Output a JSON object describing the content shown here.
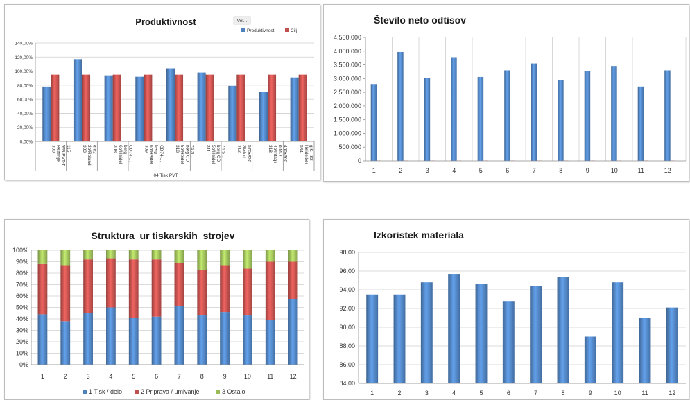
{
  "charts": {
    "prod": {
      "title": "Produktivnost",
      "badge": "Vel...",
      "axis_group_label": "04 Tisk PVT",
      "chart_data": {
        "type": "bar",
        "title": "Produktivnost",
        "categories": [
          [
            "300",
            "Rezanje",
            "WB PVT-T",
            "115"
          ],
          [
            "303",
            "2b/Roland",
            "d 82"
          ],
          [
            "308",
            "6b/Heidel",
            "berg",
            "CD74-..."
          ],
          [
            "309",
            "6b/Heidel",
            "berg",
            "CD74-..."
          ],
          [
            "318",
            "5b/Heidel",
            "berg CD",
            "74 S..."
          ],
          [
            "311",
            "5b/Heidel",
            "berg CD",
            "74 S..."
          ],
          [
            "312",
            "Stafod",
            "570x820"
          ],
          [
            "318",
            "4b/Intagli",
            "o MO",
            "460x360"
          ],
          [
            "534",
            "Heidelber",
            "g KT 82"
          ]
        ],
        "series": [
          {
            "name": "Produktivnost",
            "color": "#4f81bd",
            "values": [
              78,
              117,
              94,
              92,
              104,
              98,
              79,
              71,
              91
            ]
          },
          {
            "name": "Cilj",
            "color": "#c0504d",
            "values": [
              95,
              95,
              95,
              95,
              95,
              95,
              95,
              95,
              95
            ]
          }
        ],
        "ylim": [
          0,
          140
        ],
        "yticks": [
          "0,00%",
          "20,00%",
          "40,00%",
          "60,00%",
          "80,00%",
          "100,00%",
          "120,00%",
          "140,00%"
        ],
        "legend": "top-right"
      }
    },
    "odtisi": {
      "title": "Število neto odtisov",
      "chart_data": {
        "type": "bar",
        "title": "Število neto odtisov",
        "categories": [
          "1",
          "2",
          "3",
          "4",
          "5",
          "6",
          "7",
          "8",
          "9",
          "10",
          "11",
          "12"
        ],
        "series": [
          {
            "color": "#4f81bd",
            "values": [
              2800000,
              3970000,
              3010000,
              3780000,
              3060000,
              3300000,
              3550000,
              2940000,
              3270000,
              3460000,
              2710000,
              3300000
            ]
          },
          {
            "color": "#c0504d",
            "values": [
              12000,
              12000,
              12000,
              12000,
              12000,
              12000,
              12000,
              12000,
              12000,
              12000,
              12000,
              12000
            ]
          }
        ],
        "ylim": [
          0,
          4500000
        ],
        "yticks": [
          "0",
          "500.000",
          "1.000.000",
          "1.500.000",
          "2.000.000",
          "2.500.000",
          "3.000.000",
          "3.500.000",
          "4.000.000",
          "4.500.000"
        ],
        "grid": "vertical"
      }
    },
    "struktura": {
      "title": "Struktura  ur tiskarskih  strojev",
      "chart_data": {
        "type": "bar",
        "stacked": "percent",
        "title": "Struktura ur tiskarskih strojev",
        "categories": [
          "1",
          "2",
          "3",
          "4",
          "5",
          "6",
          "7",
          "8",
          "9",
          "10",
          "11",
          "12"
        ],
        "series": [
          {
            "name": "1 Tisk / delo",
            "color": "#4f81bd",
            "values": [
              44,
              38,
              45,
              50,
              41,
              42,
              51,
              43,
              46,
              43,
              39,
              57
            ]
          },
          {
            "name": "2 Priprava / umivanje",
            "color": "#c0504d",
            "values": [
              44,
              49,
              47,
              43,
              51,
              50,
              38,
              40,
              41,
              41,
              51,
              33
            ]
          },
          {
            "name": "3 Ostalo",
            "color": "#9bbb59",
            "values": [
              12,
              13,
              8,
              7,
              8,
              8,
              11,
              17,
              13,
              16,
              10,
              10
            ]
          }
        ],
        "ylim": [
          0,
          100
        ],
        "yticks": [
          "0%",
          "10%",
          "20%",
          "30%",
          "40%",
          "50%",
          "60%",
          "70%",
          "80%",
          "90%",
          "100%"
        ],
        "legend": "bottom"
      }
    },
    "izkoristek": {
      "title": "Izkoristek materiala",
      "chart_data": {
        "type": "bar",
        "title": "Izkoristek materiala",
        "categories": [
          "1",
          "2",
          "3",
          "4",
          "5",
          "6",
          "7",
          "8",
          "9",
          "10",
          "11",
          "12"
        ],
        "series": [
          {
            "color": "#4f81bd",
            "values": [
              93.5,
              93.5,
              94.8,
              95.7,
              94.6,
              92.8,
              94.4,
              95.4,
              89.0,
              94.8,
              91.0,
              92.1
            ]
          }
        ],
        "ylim": [
          84,
          98
        ],
        "yticks": [
          "84,00",
          "86,00",
          "88,00",
          "90,00",
          "92,00",
          "94,00",
          "96,00",
          "98,00"
        ],
        "grid": "horizontal"
      }
    }
  }
}
